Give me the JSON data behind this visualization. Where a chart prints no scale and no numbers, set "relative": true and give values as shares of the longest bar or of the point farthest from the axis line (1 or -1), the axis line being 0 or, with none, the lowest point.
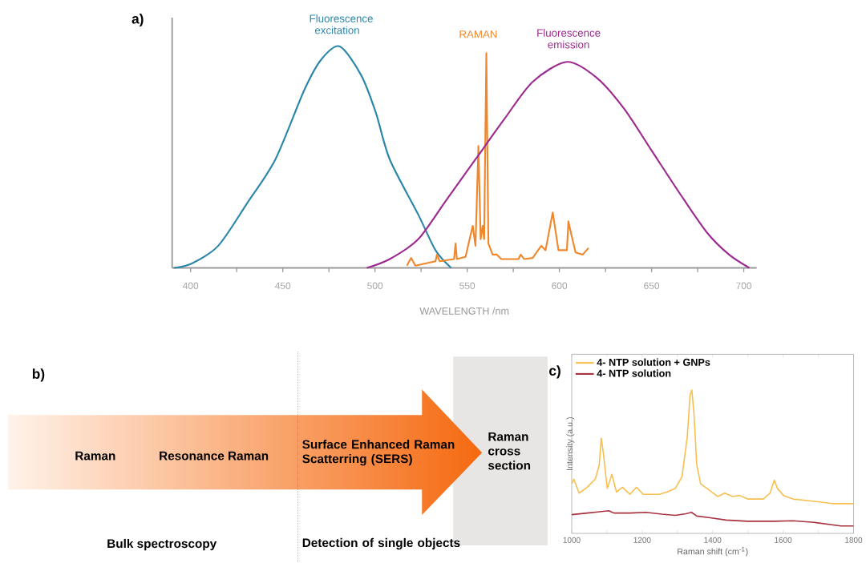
{
  "chart_data": [
    {
      "type": "line",
      "title": "a)",
      "xlabel": "WAVELENGTH /nm",
      "relative": true,
      "xlim": [
        390,
        707
      ],
      "xticks": [
        400,
        {
          "value": 425,
          "label": null
        },
        450,
        {
          "value": 475,
          "label": null
        },
        500,
        {
          "value": 525,
          "label": null
        },
        550,
        {
          "value": 575,
          "label": null
        },
        600,
        {
          "value": 625,
          "label": null
        },
        650,
        {
          "value": 675,
          "label": null
        },
        700
      ],
      "series": [
        {
          "name": "Fluorescence excitation",
          "color": "#2b87a9",
          "x": [
            390.9,
            400.7,
            415,
            430.5,
            446,
            461.5,
            470.8,
            480.9,
            492.5,
            500.5,
            508,
            523.5,
            532.8,
            541.3
          ],
          "values": [
            0,
            0.02,
            0.1,
            0.29,
            0.49,
            0.8,
            0.94,
            1,
            0.87,
            0.7,
            0.49,
            0.24,
            0.08,
            0
          ]
        },
        {
          "name": "RAMAN",
          "color": "#f0872a",
          "x": [
            517.3,
            519.6,
            521.9,
            532.8,
            533.6,
            535.1,
            542.9,
            543.7,
            544.4,
            549.1,
            553.0,
            554.5,
            556.1,
            557.3,
            558.4,
            559.2,
            560.4,
            561.5,
            563.8,
            566.1,
            568.5,
            577.8,
            579.0,
            580.9,
            585.5,
            590.2,
            592.5,
            596.4,
            599.5,
            604.1,
            604.9,
            606.5,
            608.8,
            612.7,
            615.8
          ],
          "values": [
            0.01,
            0.045,
            0.01,
            0.03,
            0.06,
            0.03,
            0.04,
            0.11,
            0.04,
            0.05,
            0.19,
            0.1,
            0.55,
            0.13,
            0.19,
            0.13,
            0.97,
            0.11,
            0.06,
            0.06,
            0.04,
            0.04,
            0.06,
            0.04,
            0.045,
            0.1,
            0.08,
            0.25,
            0.08,
            0.08,
            0.21,
            0.15,
            0.07,
            0.06,
            0.09
          ]
        },
        {
          "name": "Fluorescence emission",
          "color": "#9c2a90",
          "x": [
            495.6,
            508,
            523.5,
            539,
            554.5,
            570,
            585.5,
            604.1,
            620,
            635,
            650,
            665,
            680,
            692,
            703
          ],
          "values": [
            0,
            0.04,
            0.13,
            0.31,
            0.49,
            0.67,
            0.84,
            0.93,
            0.86,
            0.72,
            0.53,
            0.34,
            0.16,
            0.06,
            0
          ]
        }
      ]
    },
    {
      "type": "other",
      "title": "b)",
      "annotations": [
        "Raman",
        "Resonance Raman",
        "Surface Enhanced Raman Scatterring (SERS)",
        "Raman cross section",
        "Bulk spectroscopy",
        "Detection of single objects"
      ]
    },
    {
      "type": "line",
      "title": "c)",
      "xlabel": "Raman shift (cm$^{-1}$)",
      "ylabel": "Intensity (a.u.)",
      "relative": true,
      "legend": "top left",
      "xlim": [
        1000,
        1800
      ],
      "xticks": [
        1000,
        {
          "value": 1100,
          "label": null
        },
        1200,
        {
          "value": 1300,
          "label": null
        },
        1400,
        {
          "value": 1500,
          "label": null
        },
        1600,
        {
          "value": 1700,
          "label": null
        },
        1800
      ],
      "series": [
        {
          "name": "4- NTP solution + GNPs",
          "color": "#f7bf4f",
          "x": [
            1000,
            1006,
            1021,
            1044,
            1067,
            1078,
            1084,
            1089,
            1101,
            1114,
            1127,
            1144,
            1165,
            1184,
            1203,
            1249,
            1271,
            1294,
            1313,
            1328,
            1336,
            1341,
            1347,
            1355,
            1366,
            1393,
            1415,
            1434,
            1457,
            1476,
            1499,
            1544,
            1563,
            1575,
            1584,
            1601,
            1628,
            1688,
            1741,
            1800
          ],
          "values": [
            0.346,
            0.379,
            0.281,
            0.322,
            0.379,
            0.477,
            0.665,
            0.575,
            0.314,
            0.412,
            0.289,
            0.322,
            0.273,
            0.322,
            0.273,
            0.273,
            0.289,
            0.314,
            0.395,
            0.673,
            0.967,
            1.0,
            0.837,
            0.477,
            0.346,
            0.297,
            0.257,
            0.281,
            0.257,
            0.265,
            0.24,
            0.24,
            0.281,
            0.371,
            0.314,
            0.265,
            0.24,
            0.224,
            0.208,
            0.208
          ]
        },
        {
          "name": "4- NTP solution",
          "color": "#a8323e",
          "x": [
            1000,
            1044,
            1074,
            1105,
            1120,
            1165,
            1211,
            1256,
            1294,
            1324,
            1340,
            1355,
            1393,
            1438,
            1499,
            1575,
            1628,
            1688,
            1764,
            1800
          ],
          "values": [
            0.131,
            0.142,
            0.15,
            0.158,
            0.142,
            0.142,
            0.147,
            0.134,
            0.126,
            0.137,
            0.147,
            0.121,
            0.109,
            0.093,
            0.085,
            0.085,
            0.088,
            0.077,
            0.052,
            0.052
          ]
        }
      ]
    }
  ]
}
